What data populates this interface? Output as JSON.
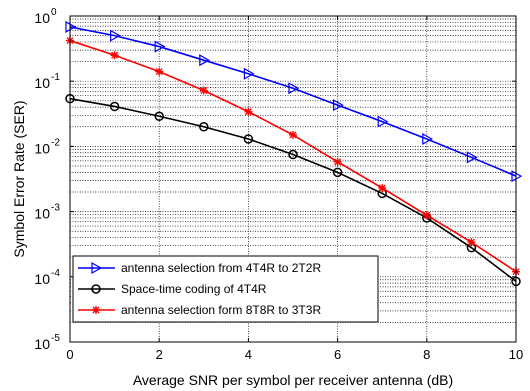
{
  "chart_data": {
    "type": "line",
    "xlabel": "Average SNR per symbol per receiver antenna (dB)",
    "ylabel": "Symbol Error Rate  (SER)",
    "xlim": [
      0,
      10
    ],
    "ylim": [
      1e-05,
      1
    ],
    "yscale": "log",
    "grid": true,
    "legend_position": "bottom-left",
    "x_ticks": [
      "0",
      "2",
      "4",
      "6",
      "8",
      "10"
    ],
    "y_ticks": [
      {
        "base": "10",
        "exp": "0"
      },
      {
        "base": "10",
        "exp": "-1"
      },
      {
        "base": "10",
        "exp": "-2"
      },
      {
        "base": "10",
        "exp": "-3"
      },
      {
        "base": "10",
        "exp": "-4"
      },
      {
        "base": "10",
        "exp": "-5"
      }
    ],
    "x": [
      0,
      1,
      2,
      3,
      4,
      5,
      6,
      7,
      8,
      9,
      10
    ],
    "series": [
      {
        "name": "antenna selection from 4T4R to 2T2R",
        "color": "#0000ff",
        "marker": "triangle-right",
        "values": [
          0.68,
          0.5,
          0.34,
          0.21,
          0.13,
          0.078,
          0.043,
          0.024,
          0.013,
          0.0068,
          0.0035
        ]
      },
      {
        "name": "Space-time coding of 4T4R",
        "color": "#000000",
        "marker": "circle",
        "values": [
          0.054,
          0.041,
          0.029,
          0.02,
          0.013,
          0.0075,
          0.004,
          0.0019,
          0.0008,
          0.00028,
          8.5e-05
        ]
      },
      {
        "name": "antenna selection form 8T8R to 3T3R",
        "color": "#ff0000",
        "marker": "star",
        "values": [
          0.42,
          0.25,
          0.14,
          0.072,
          0.034,
          0.015,
          0.0058,
          0.0023,
          0.00088,
          0.00034,
          0.00012
        ]
      }
    ]
  }
}
